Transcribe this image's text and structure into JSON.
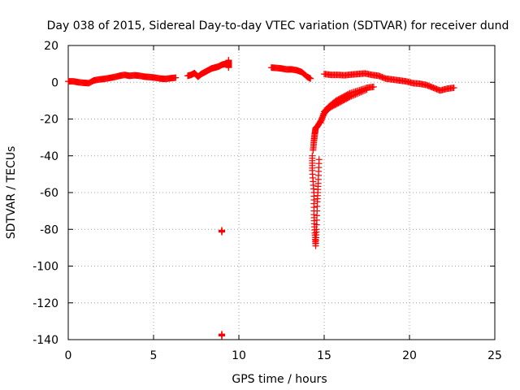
{
  "chart_data": {
    "type": "scatter",
    "title": "Day 038 of 2015, Sidereal Day-to-day VTEC variation (SDTVAR) for receiver dund",
    "xlabel": "GPS time / hours",
    "ylabel": "SDTVAR / TECUs",
    "xlim": [
      0,
      25
    ],
    "ylim": [
      -140,
      20
    ],
    "xticks": [
      0,
      5,
      10,
      15,
      20,
      25
    ],
    "yticks": [
      -140,
      -120,
      -100,
      -80,
      -60,
      -40,
      -20,
      0,
      20
    ],
    "grid": true,
    "marker": "+",
    "marker_color": "#ff0000",
    "series": [
      {
        "name": "SDTVAR",
        "segments": [
          {
            "x": [
              0.0,
              0.3,
              0.6,
              0.9,
              1.2,
              1.5,
              1.8,
              2.1,
              2.4,
              2.7,
              3.0,
              3.3,
              3.6,
              3.9,
              4.2,
              4.5,
              4.8,
              5.1,
              5.4,
              5.7,
              6.0,
              6.3
            ],
            "y": [
              0.5,
              0.5,
              0.0,
              -0.3,
              -0.5,
              1.0,
              1.5,
              1.8,
              2.3,
              2.8,
              3.5,
              4.0,
              3.5,
              3.8,
              3.5,
              3.0,
              2.8,
              2.5,
              2.0,
              1.8,
              2.2,
              2.5
            ]
          },
          {
            "x": [
              7.0,
              7.2,
              7.4,
              7.6,
              7.8,
              8.0,
              8.2,
              8.4,
              8.6,
              8.8,
              9.0,
              9.2
            ],
            "y": [
              3.5,
              4.0,
              5.0,
              3.0,
              4.5,
              5.5,
              6.5,
              7.5,
              8.0,
              8.5,
              9.5,
              10.0
            ]
          },
          {
            "x": [
              9.4,
              9.4,
              9.4
            ],
            "y": [
              12.0,
              10.0,
              8.0
            ]
          },
          {
            "x": [
              9.0,
              9.0
            ],
            "y": [
              -80.5,
              -81.5
            ]
          },
          {
            "x": [
              9.0,
              9.0
            ],
            "y": [
              -137.0,
              -138.0
            ]
          },
          {
            "x": [
              11.9,
              12.2,
              12.5,
              12.8,
              13.1,
              13.4,
              13.7,
              14.0,
              14.2
            ],
            "y": [
              8.0,
              7.8,
              7.5,
              7.0,
              7.0,
              6.5,
              5.5,
              3.0,
              2.0
            ]
          },
          {
            "x": [
              14.3,
              14.3,
              14.4,
              14.4,
              14.45,
              14.5,
              14.55,
              14.6,
              14.65,
              14.7
            ],
            "y": [
              -40.0,
              -48.0,
              -60.0,
              -72.0,
              -82.0,
              -89.0,
              -80.0,
              -65.0,
              -55.0,
              -42.0
            ]
          },
          {
            "x": [
              14.35,
              14.4,
              14.45,
              14.5,
              14.6,
              14.8,
              15.0,
              15.3,
              15.7,
              16.1,
              16.5,
              17.0,
              17.5
            ],
            "y": [
              -37.0,
              -32.0,
              -28.0,
              -25.0,
              -24.0,
              -21.0,
              -17.0,
              -14.0,
              -12.0,
              -10.0,
              -8.0,
              -6.0,
              -4.0
            ]
          },
          {
            "x": [
              14.8,
              15.0,
              15.3,
              15.7,
              16.1,
              16.5,
              17.0,
              17.5,
              17.9
            ],
            "y": [
              -22.0,
              -16.0,
              -13.0,
              -10.0,
              -8.0,
              -6.0,
              -4.5,
              -3.0,
              -2.5
            ]
          },
          {
            "x": [
              15.0,
              15.4,
              15.8,
              16.2,
              16.6,
              17.0,
              17.4,
              17.8,
              18.2,
              18.6,
              19.0,
              19.4,
              19.8,
              20.2,
              20.6,
              21.0,
              21.4,
              21.8,
              22.2,
              22.6
            ],
            "y": [
              4.5,
              4.0,
              4.0,
              3.8,
              4.2,
              4.5,
              4.8,
              4.0,
              3.5,
              2.0,
              1.5,
              1.0,
              0.5,
              -0.5,
              -0.8,
              -1.5,
              -3.0,
              -4.5,
              -3.5,
              -3.0
            ]
          }
        ]
      }
    ]
  }
}
